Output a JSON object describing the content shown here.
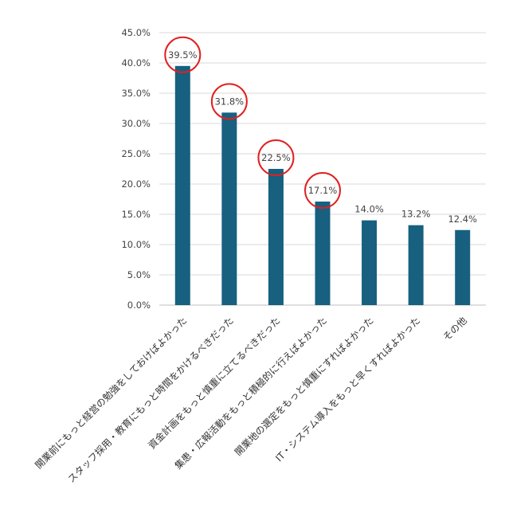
{
  "chart_data": {
    "type": "bar",
    "title": "",
    "xlabel": "",
    "ylabel": "",
    "ylim": [
      0,
      45
    ],
    "yticks": [
      "0.0%",
      "5.0%",
      "10.0%",
      "15.0%",
      "20.0%",
      "25.0%",
      "30.0%",
      "35.0%",
      "40.0%",
      "45.0%"
    ],
    "grid": true,
    "categories": [
      "開業前にもっと経営の勉強をしておけばよかった",
      "スタッフ採用・教育にもっと時間をかけるべきだった",
      "資金計画をもっと慎重に立てるべきだった",
      "集患・広報活動をもっと積極的に行えばよかった",
      "開業地の選定をもっと慎重にすればよかった",
      "IT・システム導入をもっと早くすればよかった",
      "その他"
    ],
    "values": [
      39.5,
      31.8,
      22.5,
      17.1,
      14.0,
      13.2,
      12.4
    ],
    "value_labels": [
      "39.5%",
      "31.8%",
      "22.5%",
      "17.1%",
      "14.0%",
      "13.2%",
      "12.4%"
    ],
    "highlighted": [
      true,
      true,
      true,
      true,
      false,
      false,
      false
    ],
    "colors": {
      "bar": "#17607f",
      "highlight_circle": "#e02020",
      "grid": "#d9d9d9",
      "axis": "#bfbfbf"
    }
  }
}
